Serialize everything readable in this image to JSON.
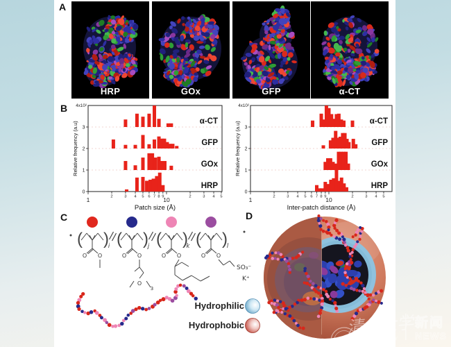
{
  "panels": {
    "a": {
      "label": "A",
      "proteins": [
        "HRP",
        "GOx",
        "GFP",
        "α-CT"
      ],
      "surface_colors": {
        "blue": "#2e2ea3",
        "red": "#d92a1c",
        "magenta": "#a84cc0",
        "green": "#2f9e35",
        "background": "#000000"
      }
    },
    "b": {
      "label": "B"
    },
    "c": {
      "label": "C",
      "monomer_dot_colors": [
        "#e0281e",
        "#262a8c",
        "#ee85b5",
        "#9b4da0"
      ],
      "subscripts": [
        "i",
        "j",
        "k",
        "l"
      ],
      "atom_o": "O",
      "peg_subscript": "3",
      "sulfonate": "SO₃⁻",
      "potassium": "K⁺",
      "legend": [
        {
          "label": "Hydrophilic",
          "color": "#6fa8c8"
        },
        {
          "label": "Hydrophobic",
          "color": "#c64f44"
        }
      ],
      "chain_bead_colors": [
        "#d8271b",
        "#ee85b5",
        "#262a8c",
        "#9b4da0"
      ]
    },
    "d": {
      "label": "D",
      "outer_color": "#cf7a5e",
      "cut_face_color": "#7e5660",
      "corona_color": "#8fc2de",
      "core_color": "#15151f"
    }
  },
  "chart_data": [
    {
      "type": "bar",
      "xlabel": "Patch size (Å)",
      "ylabel": "Relative frequency (a.u)",
      "x_scale": "log",
      "xlim": [
        1,
        57
      ],
      "bar_color": "#e8231a",
      "y_ticks": [
        "0",
        "1",
        "2",
        "3"
      ],
      "y_top_label": "4x10²",
      "x_ticks": [
        1,
        2,
        3,
        4,
        5,
        6,
        7,
        8,
        9,
        10,
        20,
        30,
        40,
        50
      ],
      "rows": [
        {
          "name": "HRP",
          "baseline": 0,
          "bars": [
            [
              3.1,
              0.1
            ],
            [
              4.2,
              0.65
            ],
            [
              5,
              0.68
            ],
            [
              5.6,
              0.5
            ],
            [
              6.2,
              0.55
            ],
            [
              6.8,
              0.6
            ],
            [
              7.5,
              0.72
            ],
            [
              8.2,
              0.88
            ],
            [
              9,
              0.3
            ]
          ]
        },
        {
          "name": "GOx",
          "baseline": 1,
          "bars": [
            [
              3,
              0.42
            ],
            [
              4,
              0.22
            ],
            [
              5,
              0.58
            ],
            [
              6,
              0.78
            ],
            [
              6.6,
              0.78
            ],
            [
              7.2,
              0.58
            ],
            [
              8,
              0.62
            ],
            [
              8.7,
              0.42
            ],
            [
              9.5,
              0.42
            ],
            [
              11.5,
              0.2
            ]
          ]
        },
        {
          "name": "GFP",
          "baseline": 2,
          "bars": [
            [
              2.1,
              0.42
            ],
            [
              3,
              0.17
            ],
            [
              4,
              0.17
            ],
            [
              5,
              0.63
            ],
            [
              6,
              0.2
            ],
            [
              7,
              0.42
            ],
            [
              8,
              0.56
            ],
            [
              8.7,
              0.46
            ],
            [
              9.4,
              0.46
            ],
            [
              10.2,
              0.3
            ],
            [
              11,
              0.22
            ],
            [
              12,
              0.22
            ],
            [
              13.5,
              0.12
            ]
          ]
        },
        {
          "name": "α-CT",
          "baseline": 3,
          "bars": [
            [
              3,
              0.35
            ],
            [
              4.2,
              0.62
            ],
            [
              5,
              0.48
            ],
            [
              6,
              0.62
            ],
            [
              7,
              1.0
            ],
            [
              8,
              0.38
            ],
            [
              10.5,
              0.17
            ],
            [
              11.5,
              0.17
            ]
          ]
        }
      ]
    },
    {
      "type": "bar",
      "xlabel": "Inter-patch distance (Å)",
      "ylabel": "Relative frequency (a.u)",
      "x_scale": "log",
      "xlim": [
        1,
        64
      ],
      "bar_color": "#e8231a",
      "y_ticks": [
        "0",
        "1",
        "2",
        "3"
      ],
      "y_top_label": "4x10²",
      "x_ticks": [
        1,
        2,
        3,
        4,
        5,
        6,
        7,
        8,
        9,
        10,
        20,
        30,
        40,
        50
      ],
      "rows": [
        {
          "name": "HRP",
          "baseline": 0,
          "bars": [
            [
              7,
              0.3
            ],
            [
              7.6,
              0.15
            ],
            [
              8.2,
              0.15
            ],
            [
              9,
              0.45
            ],
            [
              9.8,
              0.35
            ],
            [
              10.6,
              0.55
            ],
            [
              11.5,
              0.62
            ],
            [
              12.5,
              1.0
            ],
            [
              13.5,
              0.5
            ],
            [
              14.5,
              0.65
            ],
            [
              15.6,
              0.38
            ],
            [
              16.8,
              0.2
            ]
          ]
        },
        {
          "name": "GOx",
          "baseline": 1,
          "bars": [
            [
              9,
              0.38
            ],
            [
              9.7,
              0.55
            ],
            [
              10.5,
              0.55
            ],
            [
              11.3,
              0.38
            ],
            [
              12.2,
              0.3
            ],
            [
              13.3,
              0.85
            ],
            [
              14.3,
              0.85
            ],
            [
              15.4,
              0.85
            ],
            [
              16.5,
              0.85
            ],
            [
              17.7,
              0.3
            ]
          ]
        },
        {
          "name": "GFP",
          "baseline": 2,
          "bars": [
            [
              8.5,
              0.15
            ],
            [
              10.5,
              0.38
            ],
            [
              11.3,
              0.5
            ],
            [
              12.2,
              0.82
            ],
            [
              13.1,
              0.5
            ],
            [
              14,
              0.55
            ],
            [
              15,
              0.72
            ],
            [
              16,
              0.72
            ],
            [
              17,
              0.45
            ],
            [
              18,
              0.3
            ],
            [
              20.5,
              0.45
            ],
            [
              22,
              0.2
            ]
          ]
        },
        {
          "name": "α-CT",
          "baseline": 3,
          "bars": [
            [
              6.2,
              0.3
            ],
            [
              8,
              0.62
            ],
            [
              8.7,
              0.35
            ],
            [
              9.3,
              1.0
            ],
            [
              10,
              0.88
            ],
            [
              10.8,
              0.6
            ],
            [
              11.6,
              0.38
            ],
            [
              12.5,
              0.6
            ],
            [
              13.4,
              0.62
            ],
            [
              14.4,
              0.35
            ],
            [
              15.5,
              0.3
            ],
            [
              20,
              0.3
            ]
          ]
        }
      ]
    }
  ],
  "watermark": {
    "university_cn": "清华大学",
    "university_en": "Tsinghua University",
    "news_cn": "新闻",
    "news_en": "NEWS"
  }
}
